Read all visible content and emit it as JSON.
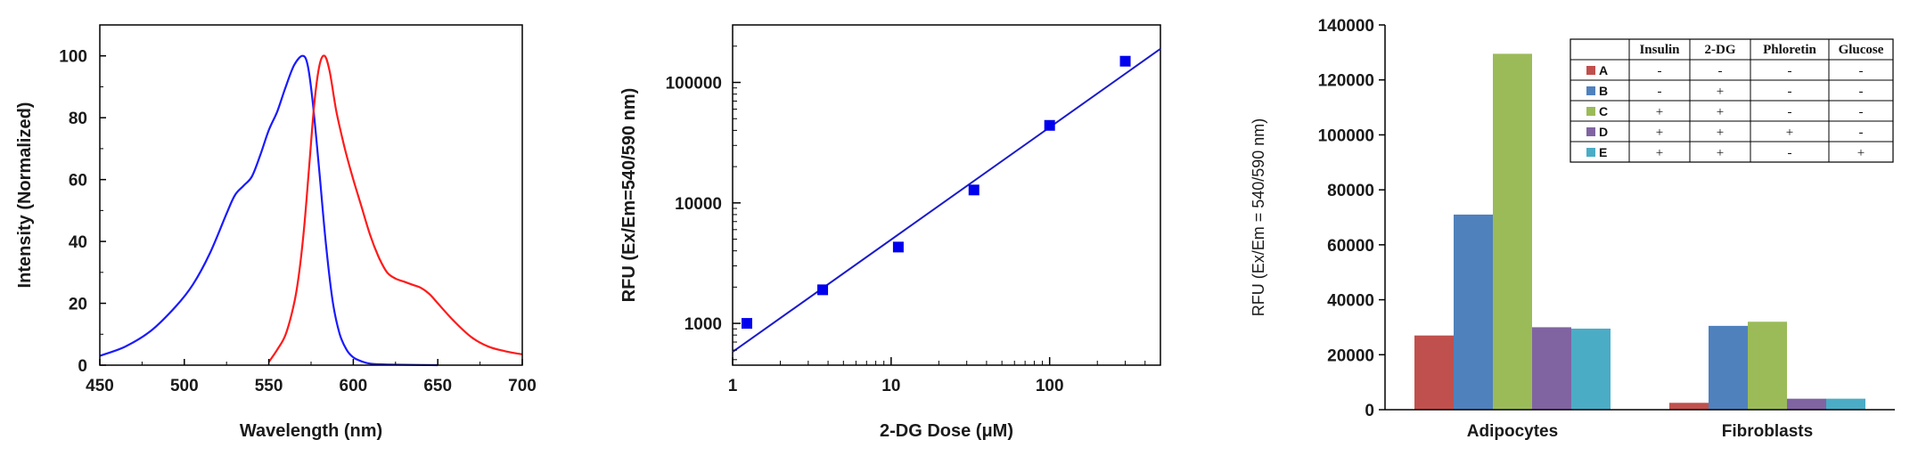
{
  "chart_data": [
    {
      "type": "line",
      "xlabel": "Wavelength (nm)",
      "ylabel": "Intensity (Normalized)",
      "xlim": [
        450,
        700
      ],
      "ylim": [
        0,
        110
      ],
      "xticks": [
        "450",
        "500",
        "550",
        "600",
        "650",
        "700"
      ],
      "yticks": [
        "0",
        "20",
        "40",
        "60",
        "80",
        "100"
      ],
      "grid": false,
      "series": [
        {
          "color": "#1a1aff",
          "x": [
            450,
            465,
            480,
            495,
            505,
            515,
            525,
            530,
            535,
            540,
            545,
            550,
            555,
            560,
            565,
            570,
            573,
            576,
            580,
            584,
            588,
            592,
            596,
            600,
            605,
            610,
            620,
            635,
            650
          ],
          "y": [
            3,
            6,
            11,
            19,
            26,
            36,
            49,
            55,
            58,
            61,
            68,
            76,
            82,
            90,
            97,
            100,
            97,
            85,
            62,
            38,
            20,
            10,
            5,
            2.5,
            1.2,
            0.5,
            0.2,
            0.1,
            0
          ]
        },
        {
          "color": "#ff1a1a",
          "x": [
            550,
            555,
            560,
            565,
            568,
            571,
            574,
            577,
            580,
            583,
            586,
            590,
            595,
            600,
            605,
            610,
            615,
            620,
            625,
            630,
            635,
            640,
            645,
            650,
            660,
            670,
            680,
            690,
            700
          ],
          "y": [
            1,
            5,
            10,
            20,
            30,
            45,
            65,
            85,
            97,
            100,
            95,
            82,
            70,
            60,
            51,
            42,
            35,
            30,
            28,
            27,
            26,
            25,
            23,
            20,
            14,
            9,
            6,
            4.5,
            3.5
          ]
        }
      ]
    },
    {
      "type": "scatter",
      "xlabel": "2-DG Dose (μM)",
      "ylabel": "RFU (Ex/Em=540/590 nm)",
      "xscale": "log",
      "yscale": "log",
      "xlim": [
        1,
        500
      ],
      "ylim": [
        450,
        300000
      ],
      "xticks": [
        "1",
        "10",
        "100"
      ],
      "yticks": [
        "1000",
        "10000",
        "100000"
      ],
      "grid": false,
      "marker_color": "#0000ee",
      "points": {
        "x": [
          1.23,
          3.7,
          11.1,
          33.3,
          100,
          300
        ],
        "y": [
          1000,
          1900,
          4300,
          12800,
          44000,
          150000
        ]
      },
      "fit_line": {
        "color": "#1a1acc",
        "x": [
          1,
          500
        ],
        "y": [
          580,
          190000
        ]
      }
    },
    {
      "type": "bar",
      "ylabel": "RFU (Ex/Em = 540/590 nm)",
      "ylim": [
        0,
        140000
      ],
      "yticks": [
        "0",
        "20000",
        "40000",
        "60000",
        "80000",
        "100000",
        "120000",
        "140000"
      ],
      "categories": [
        "Adipocytes",
        "Fibroblasts"
      ],
      "series": [
        {
          "name": "A",
          "color": "#c0504d",
          "values": [
            27000,
            2500
          ]
        },
        {
          "name": "B",
          "color": "#4f81bd",
          "values": [
            71000,
            30500
          ]
        },
        {
          "name": "C",
          "color": "#9bbb59",
          "values": [
            129500,
            32000
          ]
        },
        {
          "name": "D",
          "color": "#8064a2",
          "values": [
            30000,
            4000
          ]
        },
        {
          "name": "E",
          "color": "#4bacc6",
          "values": [
            29500,
            4000
          ]
        }
      ],
      "legend_table": {
        "headers": [
          "Insulin",
          "2-DG",
          "Phloretin",
          "Glucose"
        ],
        "rows": [
          {
            "label": "A",
            "cells": [
              "-",
              "-",
              "-",
              "-"
            ]
          },
          {
            "label": "B",
            "cells": [
              "-",
              "+",
              "-",
              "-"
            ]
          },
          {
            "label": "C",
            "cells": [
              "+",
              "+",
              "-",
              "-"
            ]
          },
          {
            "label": "D",
            "cells": [
              "+",
              "+",
              "+",
              "-"
            ]
          },
          {
            "label": "E",
            "cells": [
              "+",
              "+",
              "-",
              "+"
            ]
          }
        ]
      }
    }
  ]
}
